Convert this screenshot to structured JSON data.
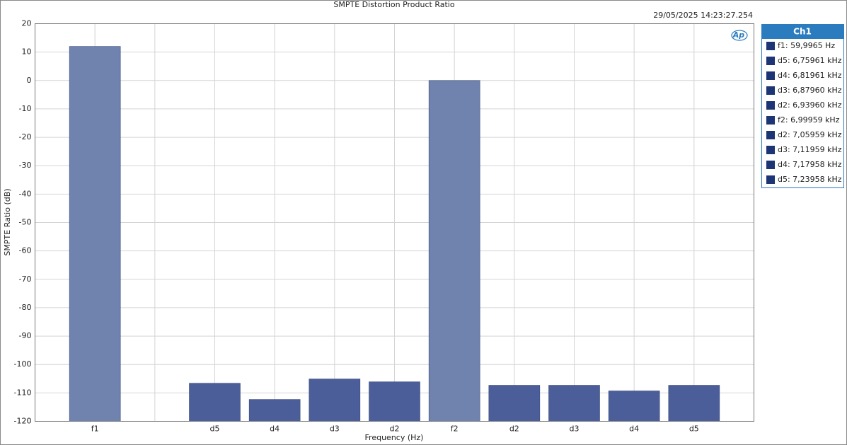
{
  "chart_data": {
    "type": "bar",
    "title": "SMPTE Distortion Product Ratio",
    "timestamp": "29/05/2025 14:23:27.254",
    "logo": "Ap",
    "x_label": "Frequency (Hz)",
    "y_label": "SMPTE Ratio (dB)",
    "categories": [
      "f1",
      null,
      "d5",
      "d4",
      "d3",
      "d2",
      "f2",
      "d2",
      "d3",
      "d4",
      "d5"
    ],
    "values": [
      12,
      null,
      -106.6,
      -112.3,
      -105.1,
      -106.1,
      0,
      -107.3,
      -107.3,
      -109.3,
      -107.3
    ],
    "colors": [
      "#7082ae",
      null,
      "#4b5e99",
      "#4b5e99",
      "#4b5e99",
      "#4b5e99",
      "#7082ae",
      "#4b5e99",
      "#4b5e99",
      "#4b5e99",
      "#4b5e99"
    ],
    "ylim": [
      -120,
      20
    ],
    "yticks": [
      -120,
      -110,
      -100,
      -90,
      -80,
      -70,
      -60,
      -50,
      -40,
      -30,
      -20,
      -10,
      0,
      10,
      20
    ],
    "grid": true,
    "legend": {
      "title": "Ch1",
      "color": "#1c3575",
      "entries": [
        "f1: 59,9965 Hz",
        "d5: 6,75961 kHz",
        "d4: 6,81961 kHz",
        "d3: 6,87960 kHz",
        "d2: 6,93960 kHz",
        "f2: 6,99959 kHz",
        "d2: 7,05959 kHz",
        "d3: 7,11959 kHz",
        "d4: 7,17958 kHz",
        "d5: 7,23958 kHz"
      ]
    }
  }
}
